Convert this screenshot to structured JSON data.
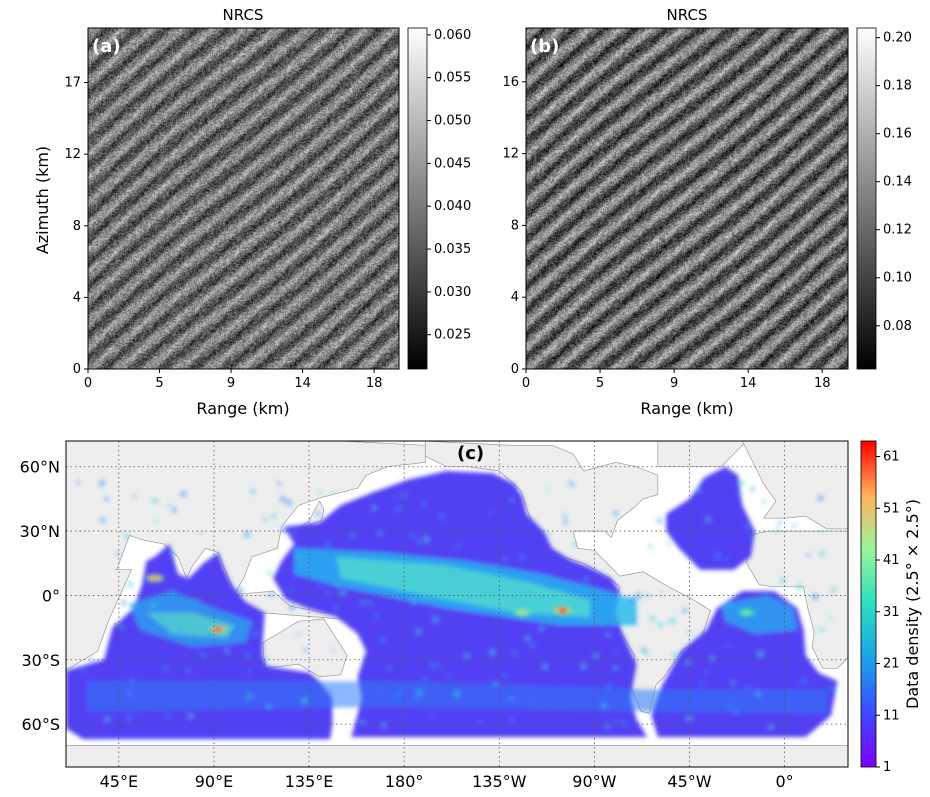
{
  "chart_data": [
    {
      "type": "heatmap",
      "panel": "(a)",
      "title": "NRCS",
      "xlabel": "Range (km)",
      "ylabel": "Azimuth (km)",
      "x_ticks": [
        "0",
        "5",
        "9",
        "14",
        "18"
      ],
      "x_tick_values": [
        0,
        4.6,
        9.2,
        13.8,
        18.4
      ],
      "xlim": [
        0,
        20
      ],
      "y_ticks": [
        "0",
        "4",
        "8",
        "12",
        "17"
      ],
      "y_tick_values": [
        0,
        4.2,
        8.4,
        12.6,
        16.8
      ],
      "ylim": [
        0,
        20
      ],
      "colorbar": {
        "ticks": [
          "0.025",
          "0.030",
          "0.035",
          "0.040",
          "0.045",
          "0.050",
          "0.055",
          "0.060"
        ],
        "tick_values": [
          0.025,
          0.03,
          0.035,
          0.04,
          0.045,
          0.05,
          0.055,
          0.06
        ],
        "range": [
          0.021,
          0.0608
        ],
        "colormap": "gray"
      },
      "texture": {
        "contrast": 0.34,
        "base": 0.44,
        "seed": 7
      }
    },
    {
      "type": "heatmap",
      "panel": "(b)",
      "title": "NRCS",
      "xlabel": "Range (km)",
      "ylabel": "",
      "x_ticks": [
        "0",
        "5",
        "9",
        "14",
        "18"
      ],
      "x_tick_values": [
        0,
        4.6,
        9.2,
        13.8,
        18.4
      ],
      "xlim": [
        0,
        20
      ],
      "y_ticks": [
        "0",
        "4",
        "8",
        "12",
        "16"
      ],
      "y_tick_values": [
        0,
        4.0,
        8.0,
        12.0,
        16.0
      ],
      "ylim": [
        0,
        19
      ],
      "colorbar": {
        "ticks": [
          "0.08",
          "0.10",
          "0.12",
          "0.14",
          "0.16",
          "0.18",
          "0.20"
        ],
        "tick_values": [
          0.08,
          0.1,
          0.12,
          0.14,
          0.16,
          0.18,
          0.2
        ],
        "range": [
          0.062,
          0.204
        ],
        "colormap": "gray"
      },
      "texture": {
        "contrast": 0.42,
        "base": 0.42,
        "seed": 19
      }
    },
    {
      "type": "heatmap",
      "panel": "(c)",
      "title": "",
      "x_ticks": [
        "45°E",
        "90°E",
        "135°E",
        "180°",
        "135°W",
        "90°W",
        "45°W",
        "0°"
      ],
      "x_tick_values": [
        45,
        90,
        135,
        180,
        225,
        270,
        315,
        360
      ],
      "xlim": [
        20,
        390
      ],
      "y_ticks": [
        "60°N",
        "30°N",
        "0°",
        "30°S",
        "60°S"
      ],
      "y_tick_values": [
        60,
        30,
        0,
        -30,
        -60
      ],
      "ylim": [
        -80,
        72
      ],
      "grid": true,
      "colorbar": {
        "label": "Data density (2.5° × 2.5°)",
        "ticks": [
          "1",
          "11",
          "21",
          "31",
          "41",
          "51",
          "61"
        ],
        "tick_values": [
          1,
          11,
          21,
          31,
          41,
          51,
          61
        ],
        "range": [
          1,
          64
        ],
        "colormap": "rainbow"
      },
      "hotspots": [
        {
          "lon": 62,
          "lat": 8,
          "value": 55
        },
        {
          "lon": 92,
          "lat": -16,
          "value": 60
        },
        {
          "lon": 255,
          "lat": -7,
          "value": 62
        },
        {
          "lon": 236,
          "lat": -8,
          "value": 48
        },
        {
          "lon": 342,
          "lat": -8,
          "value": 40
        }
      ],
      "colors": {
        "land": "#eeeeee",
        "coast": "#9a9a9a",
        "background": "#ffffff"
      }
    }
  ]
}
